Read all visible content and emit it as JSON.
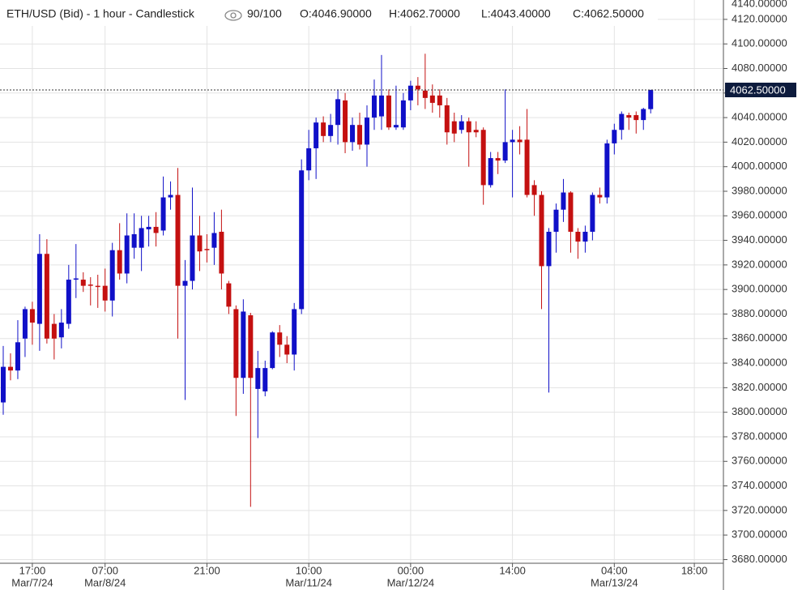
{
  "chart_data": {
    "type": "candlestick",
    "title": "ETH/USD (Bid) - 1 hour - Candlestick",
    "views": "90/100",
    "ohlc_labels": [
      "O:4046.90000",
      "H:4062.70000",
      "L:4043.40000",
      "C:4062.50000"
    ],
    "categories": [
      null,
      null,
      null,
      null,
      "17:00",
      null,
      null,
      null,
      null,
      null,
      null,
      null,
      null,
      null,
      "07:00",
      null,
      null,
      null,
      null,
      null,
      null,
      null,
      null,
      null,
      null,
      null,
      null,
      null,
      "21:00",
      null,
      null,
      null,
      null,
      null,
      null,
      null,
      null,
      null,
      null,
      null,
      null,
      null,
      "10:00",
      null,
      null,
      null,
      null,
      null,
      null,
      null,
      null,
      null,
      null,
      null,
      null,
      null,
      "00:00",
      null,
      null,
      null,
      null,
      null,
      null,
      null,
      null,
      null,
      null,
      null,
      null,
      null,
      "14:00",
      null,
      null,
      null,
      null,
      null,
      null,
      null,
      null,
      null,
      null,
      null,
      null,
      null,
      "04:00",
      null,
      null,
      null,
      null,
      null,
      null,
      null,
      null,
      null,
      null,
      "18:00"
    ],
    "dates": [
      null,
      null,
      null,
      null,
      "Mar/7/24",
      null,
      null,
      null,
      null,
      null,
      null,
      null,
      null,
      null,
      "Mar/8/24",
      null,
      null,
      null,
      null,
      null,
      null,
      null,
      null,
      null,
      null,
      null,
      null,
      null,
      null,
      null,
      null,
      null,
      null,
      null,
      null,
      null,
      null,
      null,
      null,
      null,
      null,
      null,
      "Mar/11/24",
      null,
      null,
      null,
      null,
      null,
      null,
      null,
      null,
      null,
      null,
      null,
      null,
      null,
      "Mar/12/24",
      null,
      null,
      null,
      null,
      null,
      null,
      null,
      null,
      null,
      null,
      null,
      null,
      null,
      null,
      null,
      null,
      null,
      null,
      null,
      null,
      null,
      null,
      null,
      null,
      null,
      null,
      null,
      "Mar/13/24",
      null,
      null,
      null,
      null,
      null,
      null,
      null,
      null,
      null,
      null,
      null
    ],
    "open": [
      3808,
      3837,
      3834,
      3860,
      3884,
      3872,
      3929,
      3872,
      3861,
      3872,
      3908,
      3908,
      3904,
      3903,
      3903,
      3891,
      3932,
      3913,
      3934,
      3934,
      3949,
      3951,
      3948,
      3975,
      3977,
      3903,
      3907,
      3944,
      3933,
      3934,
      3947,
      3905,
      3884,
      3828,
      3879,
      3819,
      3817,
      3836,
      3865,
      3855,
      3847,
      3884,
      3997,
      4015,
      4036,
      4025,
      4034,
      4054,
      4020,
      4034,
      4018,
      4040,
      4041,
      4058,
      4032,
      4032,
      4054,
      4066,
      4062,
      4058,
      4058,
      4050,
      4037,
      4030,
      4037,
      4030,
      4030,
      3985,
      4007,
      4005,
      4020,
      4022,
      4022,
      3985,
      3977,
      3919,
      3947,
      3965,
      3979,
      3947,
      3939,
      3947,
      3977,
      3975,
      4019,
      4030,
      4042,
      4042,
      4038,
      4046.9,
      null,
      null,
      null,
      null,
      null,
      null
    ],
    "high": [
      3854,
      3848,
      3875,
      3886,
      3890,
      3945,
      3941,
      3880,
      3884,
      3920,
      3937,
      3914,
      3910,
      3912,
      3917,
      3938,
      3954,
      3962,
      3962,
      3960,
      3960,
      3963,
      3992,
      3988,
      3999,
      3924,
      3983,
      3960,
      3945,
      3963,
      3965,
      3907,
      3887,
      3892,
      3881,
      3850,
      3842,
      3866,
      3871,
      3862,
      3889,
      4006,
      4030,
      4040,
      4041,
      4043,
      4063,
      4060,
      4040,
      4044,
      4050,
      4071,
      4091,
      4063,
      4066,
      4060,
      4070,
      4073,
      4092,
      4067,
      4063,
      4056,
      4044,
      4042,
      4040,
      4037,
      4032,
      4012,
      4012,
      4063,
      4030,
      4033,
      4047,
      3989,
      3980,
      3950,
      3970,
      3990,
      3980,
      3950,
      3952,
      3979,
      3983,
      4022,
      4035,
      4045,
      4044,
      4045,
      4048,
      4062.7,
      null,
      null,
      null,
      null,
      null,
      null
    ],
    "low": [
      3798,
      3826,
      3827,
      3845,
      3855,
      3850,
      3856,
      3843,
      3852,
      3868,
      3893,
      3898,
      3887,
      3885,
      3882,
      3878,
      3908,
      3905,
      3925,
      3915,
      3935,
      3935,
      3944,
      3965,
      3860,
      3810,
      3900,
      3915,
      3922,
      3920,
      3900,
      3880,
      3797,
      3815,
      3723,
      3779,
      3813,
      3835,
      3845,
      3840,
      3834,
      3880,
      3989,
      3990,
      4020,
      4020,
      4018,
      4011,
      4013,
      4014,
      4000,
      4030,
      4030,
      4030,
      4030,
      4030,
      4046,
      4050,
      4047,
      4044,
      4040,
      4018,
      4020,
      4027,
      4000,
      4024,
      3969,
      3983,
      3994,
      4003,
      3975,
      4010,
      3975,
      3960,
      3884,
      3816,
      3930,
      3955,
      3930,
      3925,
      3930,
      3940,
      3970,
      3970,
      4010,
      4022,
      4030,
      4027,
      4030,
      4043.4,
      null,
      null,
      null,
      null,
      null,
      null
    ],
    "close": [
      3837,
      3834,
      3857,
      3884,
      3873,
      3929,
      3860,
      3860,
      3873,
      3908,
      3909,
      3903,
      3903,
      3902,
      3891,
      3932,
      3913,
      3944,
      3945,
      3950,
      3951,
      3946,
      3975,
      3977,
      3903,
      3907,
      3944,
      3931,
      3932,
      3946,
      3913,
      3886,
      3828,
      3882,
      3828,
      3836,
      3836,
      3865,
      3855,
      3847,
      3884,
      3997,
      4015,
      4036,
      4025,
      4034,
      4055,
      4020,
      4034,
      4018,
      4040,
      4058,
      4058,
      4032,
      4034,
      4054,
      4066,
      4063,
      4056,
      4052,
      4050,
      4028,
      4027,
      4037,
      4028,
      4028,
      3985,
      4007,
      4005,
      4020,
      4022,
      4020,
      3977,
      3977,
      3919,
      3947,
      3965,
      3979,
      3947,
      3939,
      3947,
      3977,
      3975,
      4019,
      4030,
      4043,
      4040,
      4038,
      4047,
      4062.5,
      null,
      null,
      null,
      null,
      null,
      null
    ],
    "up_color": "#1010c8",
    "down_color": "#c41010",
    "last_price": {
      "value": 4062.5,
      "label": "4062.50000"
    },
    "ylim": [
      3677,
      4140
    ],
    "yticks": [
      {
        "value": 3680,
        "label": "3680.00000"
      },
      {
        "value": 3700,
        "label": "3700.00000"
      },
      {
        "value": 3720,
        "label": "3720.00000"
      },
      {
        "value": 3740,
        "label": "3740.00000"
      },
      {
        "value": 3760,
        "label": "3760.00000"
      },
      {
        "value": 3780,
        "label": "3780.00000"
      },
      {
        "value": 3800,
        "label": "3800.00000"
      },
      {
        "value": 3820,
        "label": "3820.00000"
      },
      {
        "value": 3840,
        "label": "3840.00000"
      },
      {
        "value": 3860,
        "label": "3860.00000"
      },
      {
        "value": 3880,
        "label": "3880.00000"
      },
      {
        "value": 3900,
        "label": "3900.00000"
      },
      {
        "value": 3920,
        "label": "3920.00000"
      },
      {
        "value": 3940,
        "label": "3940.00000"
      },
      {
        "value": 3960,
        "label": "3960.00000"
      },
      {
        "value": 3980,
        "label": "3980.00000"
      },
      {
        "value": 4000,
        "label": "4000.00000"
      },
      {
        "value": 4020,
        "label": "4020.00000"
      },
      {
        "value": 4040,
        "label": "4040.00000"
      },
      {
        "value": 4060,
        "label": "4060.00000"
      },
      {
        "value": 4080,
        "label": "4080.00000"
      },
      {
        "value": 4100,
        "label": "4100.00000"
      },
      {
        "value": 4120,
        "label": "4120.00000"
      },
      {
        "value": 4140,
        "label": "4140.00000"
      }
    ],
    "grid": true
  }
}
